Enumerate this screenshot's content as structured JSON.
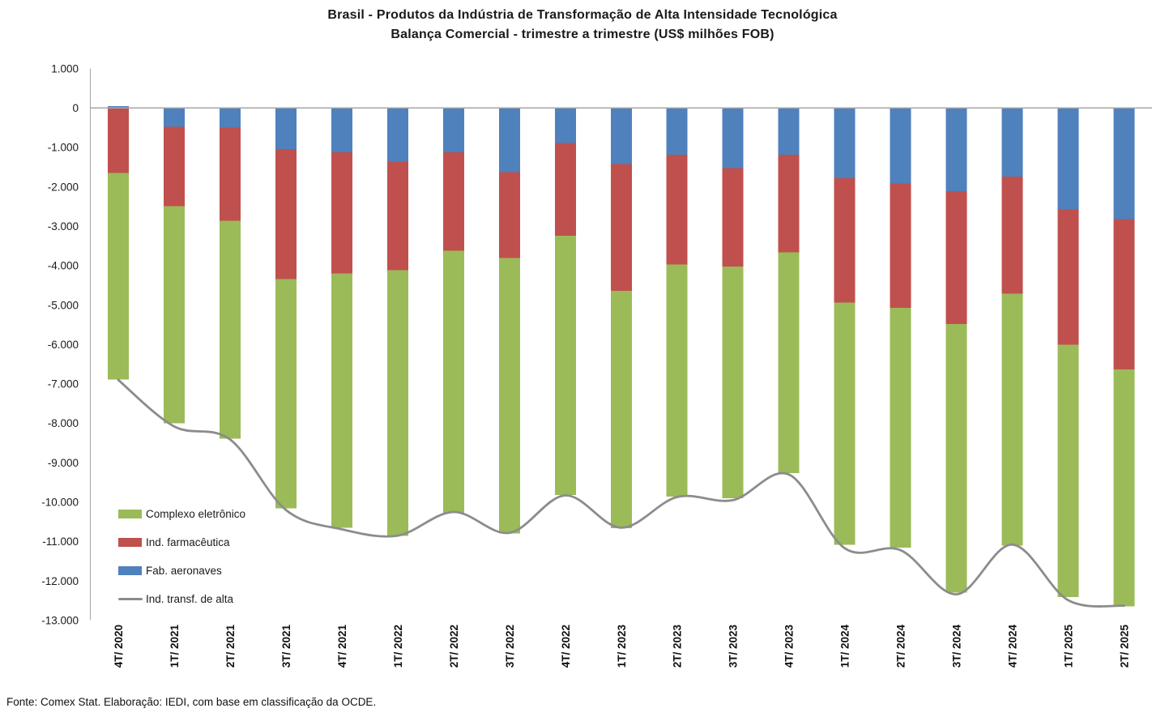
{
  "title": {
    "line1": "Brasil - Produtos da Indústria de Transformação  de Alta Intensidade Tecnológica",
    "line2": "Balança Comercial - trimestre a trimestre (US$ milhões FOB)"
  },
  "footer": "Fonte: Comex Stat. Elaboração: IEDI, com base em classificação da OCDE.",
  "legend": [
    {
      "label": "Complexo eletrônico",
      "color": "#9BBB59",
      "swatch": "box"
    },
    {
      "label": "Ind. farmacêutica",
      "color": "#C0504D",
      "swatch": "box"
    },
    {
      "label": "Fab. aeronaves",
      "color": "#4F81BD",
      "swatch": "box"
    },
    {
      "label": "Ind. transf. de alta",
      "color": "#8C8C8C",
      "swatch": "line"
    }
  ],
  "colors": {
    "electronics_green": "#9BBB59",
    "pharma_red": "#C0504D",
    "aircraft_blue": "#4F81BD",
    "total_line_gray": "#8C8C8C",
    "axis_gray": "#A6A6A6",
    "text_dark": "#1a1a1a"
  },
  "y_axis": {
    "max": 1000,
    "min": -13000,
    "step": 1000,
    "tick_labels": [
      "1.000",
      "0",
      "-1.000",
      "-2.000",
      "-3.000",
      "-4.000",
      "-5.000",
      "-6.000",
      "-7.000",
      "-8.000",
      "-9.000",
      "-10.000",
      "-11.000",
      "-12.000",
      "-13.000"
    ]
  },
  "chart_data": {
    "type": "bar",
    "subtype": "stacked-bars-with-line-overlay",
    "title": "Brasil - Produtos da Indústria de Transformação de Alta Intensidade Tecnológica — Balança Comercial - trimestre a trimestre (US$ milhões FOB)",
    "xlabel": "",
    "ylabel": "US$ milhões FOB",
    "ylim": [
      -13000,
      1000
    ],
    "grid": false,
    "legend_position": "inside-left-bottom",
    "categories": [
      "4T/ 2020",
      "1T/ 2021",
      "2T/ 2021",
      "3T/ 2021",
      "4T/ 2021",
      "1T/ 2022",
      "2T/ 2022",
      "3T/ 2022",
      "4T/ 2022",
      "1T/ 2023",
      "2T/ 2023",
      "3T/ 2023",
      "4T/ 2023",
      "1T/ 2024",
      "2T/ 2024",
      "3T/ 2024",
      "4T/ 2024",
      "1T/ 2025",
      "2T/ 2025"
    ],
    "stack_order_note": "bar series listed nearest-zero first; positive values stack above zero",
    "series": [
      {
        "name": "Fab. aeronaves",
        "type": "bar",
        "color": "#4F81BD",
        "values": [
          50,
          -480,
          -500,
          -1040,
          -1120,
          -1370,
          -1120,
          -1630,
          -890,
          -1420,
          -1190,
          -1530,
          -1190,
          -1780,
          -1920,
          -2110,
          -1740,
          -2570,
          -2820
        ]
      },
      {
        "name": "Ind. farmacêutica",
        "type": "bar",
        "color": "#C0504D",
        "values": [
          -1650,
          -2010,
          -2360,
          -3300,
          -3080,
          -2740,
          -2500,
          -2180,
          -2350,
          -3220,
          -2780,
          -2490,
          -2470,
          -3160,
          -3150,
          -3370,
          -2970,
          -3440,
          -3810
        ]
      },
      {
        "name": "Complexo eletrônico",
        "type": "bar",
        "color": "#9BBB59",
        "values": [
          -5240,
          -5510,
          -5530,
          -5820,
          -6450,
          -6750,
          -6650,
          -6980,
          -6580,
          -6020,
          -5890,
          -5880,
          -5600,
          -6140,
          -6080,
          -6820,
          -6390,
          -6400,
          -6020
        ]
      },
      {
        "name": "Ind. transf. de alta",
        "type": "line",
        "color": "#8C8C8C",
        "values": [
          -6900,
          -8080,
          -8410,
          -10200,
          -10690,
          -10850,
          -10250,
          -10780,
          -9830,
          -10650,
          -9870,
          -9950,
          -9300,
          -11170,
          -11220,
          -12340,
          -11080,
          -12490,
          -12630
        ]
      }
    ]
  }
}
